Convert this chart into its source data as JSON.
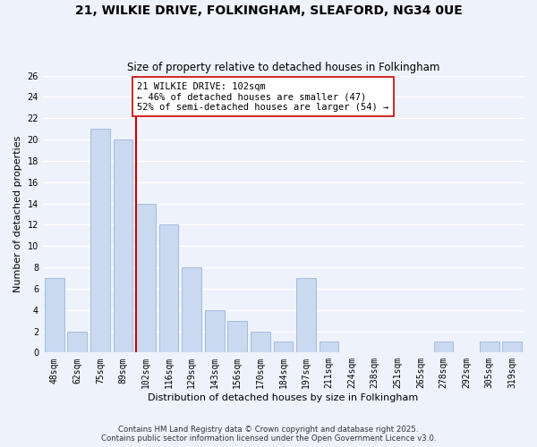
{
  "title": "21, WILKIE DRIVE, FOLKINGHAM, SLEAFORD, NG34 0UE",
  "subtitle": "Size of property relative to detached houses in Folkingham",
  "xlabel": "Distribution of detached houses by size in Folkingham",
  "ylabel": "Number of detached properties",
  "bar_labels": [
    "48sqm",
    "62sqm",
    "75sqm",
    "89sqm",
    "102sqm",
    "116sqm",
    "129sqm",
    "143sqm",
    "156sqm",
    "170sqm",
    "184sqm",
    "197sqm",
    "211sqm",
    "224sqm",
    "238sqm",
    "251sqm",
    "265sqm",
    "278sqm",
    "292sqm",
    "305sqm",
    "319sqm"
  ],
  "bar_values": [
    7,
    2,
    21,
    20,
    14,
    12,
    8,
    4,
    3,
    2,
    1,
    7,
    1,
    0,
    0,
    0,
    0,
    1,
    0,
    1,
    1
  ],
  "bar_color": "#c8d9f0",
  "bar_edge_color": "#9ab5d8",
  "highlight_index": 4,
  "highlight_line_color": "#cc0000",
  "ylim": [
    0,
    26
  ],
  "yticks": [
    0,
    2,
    4,
    6,
    8,
    10,
    12,
    14,
    16,
    18,
    20,
    22,
    24,
    26
  ],
  "annotation_line1": "21 WILKIE DRIVE: 102sqm",
  "annotation_line2": "← 46% of detached houses are smaller (47)",
  "annotation_line3": "52% of semi-detached houses are larger (54) →",
  "annotation_box_color": "#ffffff",
  "annotation_box_edge": "#cc0000",
  "footer_line1": "Contains HM Land Registry data © Crown copyright and database right 2025.",
  "footer_line2": "Contains public sector information licensed under the Open Government Licence v3.0.",
  "background_color": "#eef2fa",
  "grid_color": "#ffffff",
  "title_fontsize": 10,
  "subtitle_fontsize": 8.5,
  "axis_label_fontsize": 8,
  "tick_fontsize": 7,
  "annotation_fontsize": 7.5,
  "footer_fontsize": 6.2
}
